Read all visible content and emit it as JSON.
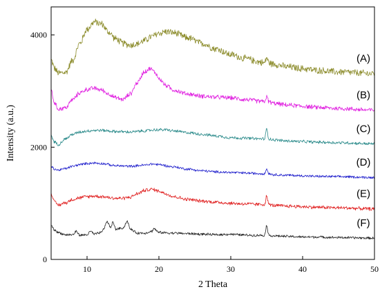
{
  "chart_data": {
    "type": "line",
    "title": "",
    "xlabel": "2 Theta",
    "ylabel": "Intensity (a.u.)",
    "xlim": [
      5,
      50
    ],
    "ylim": [
      0,
      4500
    ],
    "xticks": [
      10,
      20,
      30,
      40,
      50
    ],
    "yticks": [
      0,
      2000,
      4000
    ],
    "grid": false,
    "legend": "none",
    "series": [
      {
        "name": "(A)",
        "color": "#8b8b2a",
        "noise": 70,
        "points": [
          [
            5,
            3550
          ],
          [
            5.5,
            3400
          ],
          [
            6,
            3320
          ],
          [
            7,
            3330
          ],
          [
            8,
            3550
          ],
          [
            9,
            3850
          ],
          [
            10,
            4100
          ],
          [
            11,
            4230
          ],
          [
            12,
            4200
          ],
          [
            13,
            4050
          ],
          [
            14,
            3930
          ],
          [
            15,
            3850
          ],
          [
            16,
            3820
          ],
          [
            17,
            3840
          ],
          [
            18,
            3900
          ],
          [
            19,
            3970
          ],
          [
            20,
            4030
          ],
          [
            21,
            4060
          ],
          [
            22,
            4040
          ],
          [
            24,
            3950
          ],
          [
            26,
            3850
          ],
          [
            28,
            3750
          ],
          [
            30,
            3650
          ],
          [
            32,
            3580
          ],
          [
            34,
            3520
          ],
          [
            34.7,
            3500
          ],
          [
            35,
            3600
          ],
          [
            35.3,
            3500
          ],
          [
            36,
            3480
          ],
          [
            38,
            3430
          ],
          [
            40,
            3400
          ],
          [
            42,
            3370
          ],
          [
            45,
            3340
          ],
          [
            50,
            3310
          ]
        ]
      },
      {
        "name": "(B)",
        "color": "#e020e0",
        "noise": 45,
        "points": [
          [
            5,
            3000
          ],
          [
            5.5,
            2780
          ],
          [
            6,
            2680
          ],
          [
            7,
            2700
          ],
          [
            8,
            2850
          ],
          [
            9,
            2970
          ],
          [
            10,
            3030
          ],
          [
            11,
            3050
          ],
          [
            12,
            3020
          ],
          [
            13,
            2950
          ],
          [
            14,
            2880
          ],
          [
            15,
            2850
          ],
          [
            16,
            2950
          ],
          [
            17,
            3150
          ],
          [
            18,
            3350
          ],
          [
            18.8,
            3400
          ],
          [
            19.5,
            3330
          ],
          [
            20,
            3220
          ],
          [
            21,
            3100
          ],
          [
            22,
            3020
          ],
          [
            24,
            2950
          ],
          [
            26,
            2910
          ],
          [
            28,
            2890
          ],
          [
            30,
            2880
          ],
          [
            32,
            2850
          ],
          [
            34,
            2820
          ],
          [
            34.7,
            2810
          ],
          [
            35,
            2900
          ],
          [
            35.3,
            2810
          ],
          [
            36,
            2780
          ],
          [
            38,
            2750
          ],
          [
            40,
            2730
          ],
          [
            42,
            2710
          ],
          [
            45,
            2690
          ],
          [
            50,
            2660
          ]
        ]
      },
      {
        "name": "(C)",
        "color": "#2a8a8a",
        "noise": 30,
        "points": [
          [
            5,
            2200
          ],
          [
            5.5,
            2090
          ],
          [
            6,
            2050
          ],
          [
            7,
            2150
          ],
          [
            8,
            2230
          ],
          [
            9,
            2270
          ],
          [
            10,
            2290
          ],
          [
            11,
            2300
          ],
          [
            12,
            2300
          ],
          [
            14,
            2280
          ],
          [
            16,
            2270
          ],
          [
            18,
            2290
          ],
          [
            19.5,
            2310
          ],
          [
            21,
            2310
          ],
          [
            22,
            2290
          ],
          [
            24,
            2260
          ],
          [
            26,
            2230
          ],
          [
            28,
            2200
          ],
          [
            30,
            2170
          ],
          [
            32,
            2160
          ],
          [
            34,
            2150
          ],
          [
            34.7,
            2150
          ],
          [
            35,
            2320
          ],
          [
            35.3,
            2150
          ],
          [
            36,
            2130
          ],
          [
            38,
            2110
          ],
          [
            40,
            2100
          ],
          [
            42,
            2090
          ],
          [
            45,
            2080
          ],
          [
            50,
            2060
          ]
        ]
      },
      {
        "name": "(D)",
        "color": "#2020cc",
        "noise": 25,
        "points": [
          [
            5,
            1650
          ],
          [
            5.5,
            1610
          ],
          [
            6,
            1590
          ],
          [
            7,
            1620
          ],
          [
            8,
            1660
          ],
          [
            9,
            1690
          ],
          [
            10,
            1710
          ],
          [
            11,
            1720
          ],
          [
            12,
            1710
          ],
          [
            14,
            1670
          ],
          [
            16,
            1660
          ],
          [
            18,
            1680
          ],
          [
            19,
            1700
          ],
          [
            20,
            1690
          ],
          [
            22,
            1650
          ],
          [
            24,
            1610
          ],
          [
            26,
            1580
          ],
          [
            28,
            1560
          ],
          [
            30,
            1550
          ],
          [
            32,
            1540
          ],
          [
            34,
            1530
          ],
          [
            34.7,
            1530
          ],
          [
            35,
            1610
          ],
          [
            35.3,
            1530
          ],
          [
            36,
            1510
          ],
          [
            38,
            1500
          ],
          [
            40,
            1490
          ],
          [
            42,
            1480
          ],
          [
            45,
            1475
          ],
          [
            50,
            1460
          ]
        ]
      },
      {
        "name": "(E)",
        "color": "#e02020",
        "noise": 35,
        "points": [
          [
            5,
            1180
          ],
          [
            5.5,
            1020
          ],
          [
            6,
            970
          ],
          [
            7,
            1010
          ],
          [
            8,
            1070
          ],
          [
            9,
            1100
          ],
          [
            10,
            1120
          ],
          [
            11,
            1130
          ],
          [
            12,
            1120
          ],
          [
            14,
            1090
          ],
          [
            15,
            1090
          ],
          [
            16,
            1110
          ],
          [
            17,
            1170
          ],
          [
            18,
            1230
          ],
          [
            19,
            1250
          ],
          [
            20,
            1220
          ],
          [
            21,
            1170
          ],
          [
            22,
            1120
          ],
          [
            24,
            1070
          ],
          [
            26,
            1040
          ],
          [
            28,
            1020
          ],
          [
            30,
            1000
          ],
          [
            32,
            990
          ],
          [
            34,
            980
          ],
          [
            34.7,
            980
          ],
          [
            35,
            1130
          ],
          [
            35.3,
            980
          ],
          [
            36,
            960
          ],
          [
            38,
            950
          ],
          [
            40,
            940
          ],
          [
            42,
            930
          ],
          [
            45,
            920
          ],
          [
            50,
            900
          ]
        ]
      },
      {
        "name": "(F)",
        "color": "#222222",
        "noise": 25,
        "points": [
          [
            5,
            610
          ],
          [
            5.5,
            520
          ],
          [
            6,
            480
          ],
          [
            7,
            440
          ],
          [
            8,
            440
          ],
          [
            8.5,
            500
          ],
          [
            9,
            430
          ],
          [
            10,
            440
          ],
          [
            10.5,
            500
          ],
          [
            11,
            450
          ],
          [
            12,
            480
          ],
          [
            12.4,
            560
          ],
          [
            12.7,
            670
          ],
          [
            13,
            640
          ],
          [
            13.3,
            560
          ],
          [
            13.6,
            670
          ],
          [
            14,
            540
          ],
          [
            15,
            560
          ],
          [
            15.6,
            680
          ],
          [
            16,
            540
          ],
          [
            17,
            470
          ],
          [
            18,
            470
          ],
          [
            19,
            500
          ],
          [
            19.3,
            550
          ],
          [
            20,
            480
          ],
          [
            22,
            470
          ],
          [
            24,
            460
          ],
          [
            26,
            450
          ],
          [
            28,
            440
          ],
          [
            30,
            450
          ],
          [
            31,
            440
          ],
          [
            33,
            430
          ],
          [
            34.7,
            430
          ],
          [
            35,
            610
          ],
          [
            35.3,
            430
          ],
          [
            36,
            420
          ],
          [
            38,
            410
          ],
          [
            40,
            400
          ],
          [
            42,
            400
          ],
          [
            45,
            390
          ],
          [
            50,
            380
          ]
        ]
      }
    ]
  }
}
